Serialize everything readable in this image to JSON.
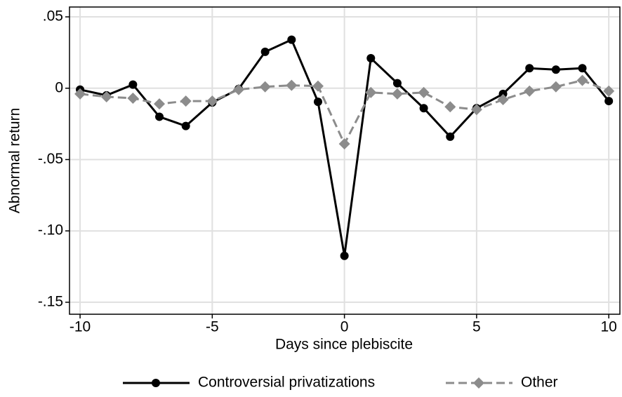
{
  "chart_data": {
    "type": "line",
    "x_label": "Days since plebiscite",
    "y_label": "Abnormal return",
    "x": [
      -10,
      -9,
      -8,
      -7,
      -6,
      -5,
      -4,
      -3,
      -2,
      -1,
      0,
      1,
      2,
      3,
      4,
      5,
      6,
      7,
      8,
      9,
      10
    ],
    "series": [
      {
        "name": "Controversial privatizations",
        "color": "#000000",
        "marker": "circle",
        "dashed": false,
        "values": [
          -0.001,
          -0.005,
          0.0025,
          -0.02,
          -0.0265,
          -0.01,
          -0.0005,
          0.0255,
          0.034,
          -0.0095,
          -0.1175,
          0.021,
          0.0035,
          -0.014,
          -0.034,
          -0.014,
          -0.004,
          0.014,
          0.013,
          0.014,
          -0.009
        ]
      },
      {
        "name": "Other",
        "color": "#8c8c8c",
        "marker": "diamond",
        "dashed": true,
        "values": [
          -0.004,
          -0.006,
          -0.007,
          -0.011,
          -0.009,
          -0.009,
          -0.001,
          0.001,
          0.002,
          0.0015,
          -0.039,
          -0.003,
          -0.004,
          -0.003,
          -0.013,
          -0.015,
          -0.008,
          -0.002,
          0.001,
          0.0055,
          -0.002
        ]
      }
    ],
    "xlim": [
      -10.4,
      10.42
    ],
    "ylim": [
      -0.1584,
      0.0569
    ],
    "xticks": [
      -10,
      -5,
      0,
      5,
      10
    ],
    "yticks": [
      {
        "value": 0.05,
        "label": ".05"
      },
      0,
      {
        "value": -0.05,
        "label": "-.05"
      },
      {
        "value": -0.1,
        "label": "-.10"
      },
      {
        "value": -0.15,
        "label": "-.15"
      }
    ],
    "grid": true,
    "legend": "bottom"
  }
}
